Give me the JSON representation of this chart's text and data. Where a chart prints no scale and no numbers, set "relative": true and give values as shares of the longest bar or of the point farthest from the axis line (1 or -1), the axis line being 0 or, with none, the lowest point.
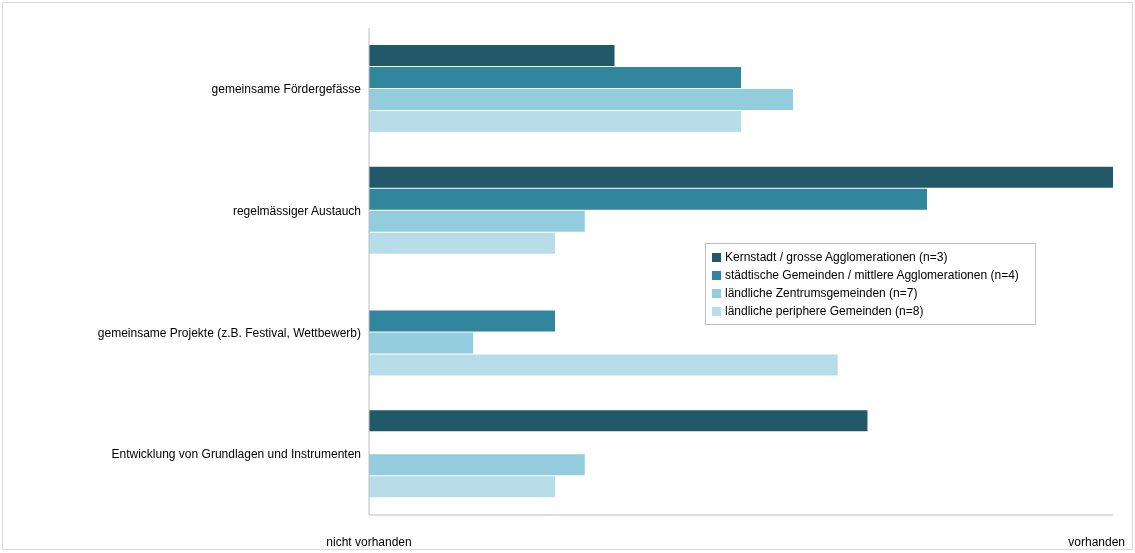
{
  "chart_data": {
    "type": "bar",
    "orientation": "horizontal",
    "categories": [
      "gemeinsame Fördergefässe",
      "regelmässiger Austauch",
      "gemeinsame Projekte (z.B. Festival, Wettbewerb)",
      "Entwicklung von Grundlagen und Instrumenten"
    ],
    "series": [
      {
        "name": "Kernstadt / grosse Agglomerationen (n=3)",
        "color": "#215968",
        "values": [
          0.33,
          1,
          0,
          0.67
        ]
      },
      {
        "name": "städtische Gemeinden / mittlere Agglomerationen (n=4)",
        "color": "#31859c",
        "values": [
          0.5,
          0.75,
          0.25,
          0
        ]
      },
      {
        "name": "ländliche Zentrumsgemeinden (n=7)",
        "color": "#93cddd",
        "values": [
          0.57,
          0.29,
          0.14,
          0.29
        ]
      },
      {
        "name": "ländliche periphere Gemeinden (n=8)",
        "color": "#b7dee8",
        "values": [
          0.5,
          0.25,
          0.63,
          0.25
        ]
      }
    ],
    "relative": true,
    "annotations": [
      "nicht vorhanden",
      "vorhanden"
    ],
    "grid": false,
    "legend": "right"
  }
}
